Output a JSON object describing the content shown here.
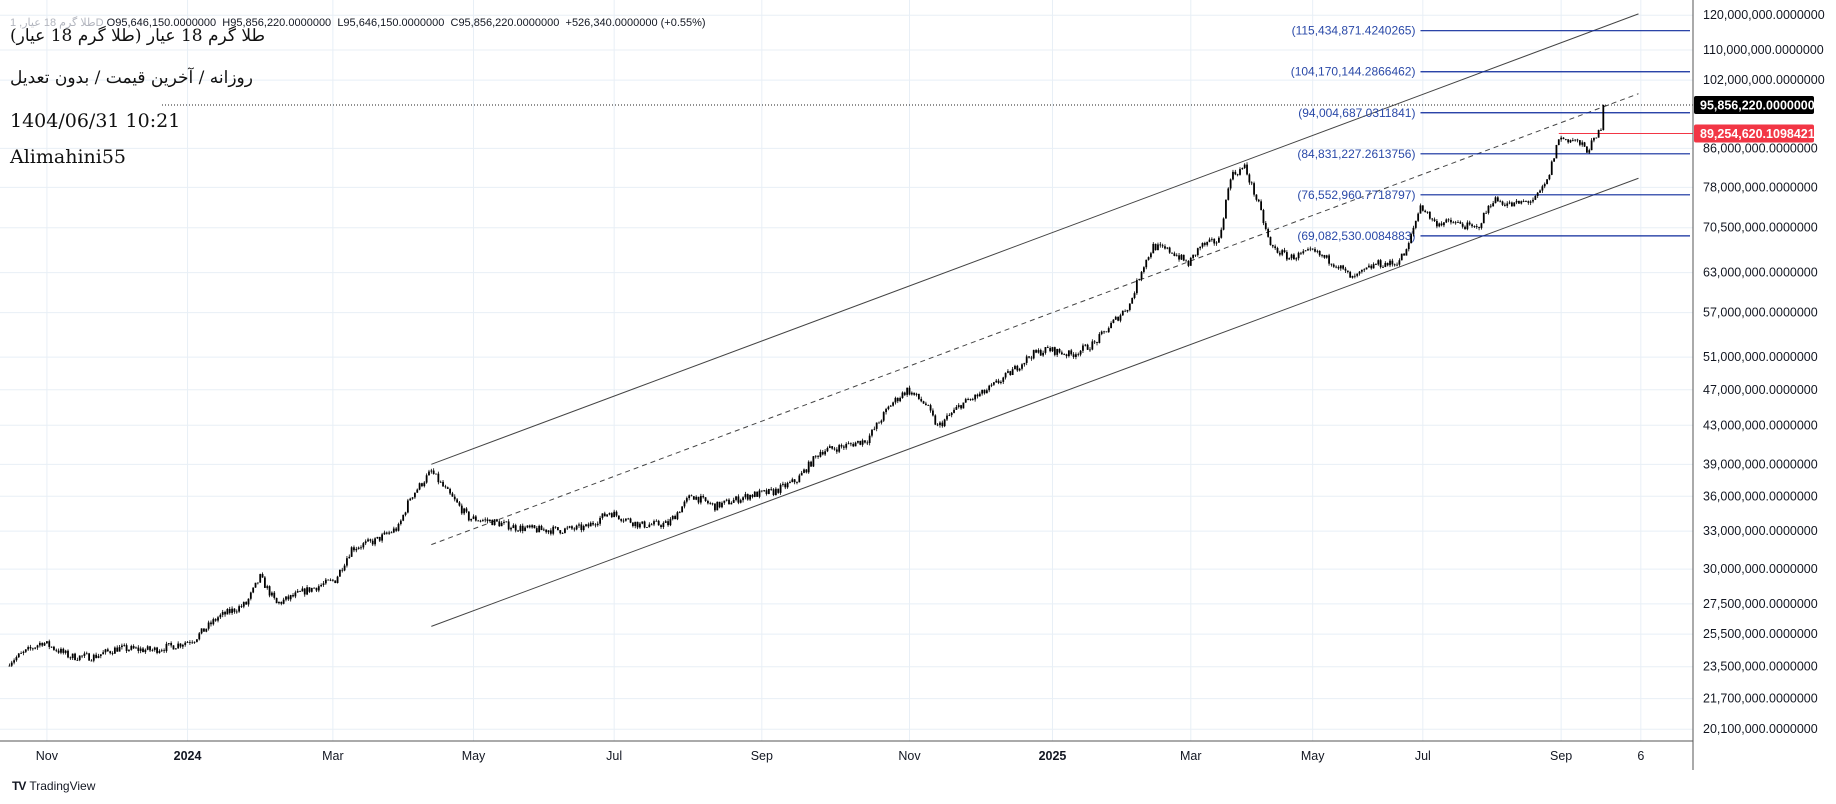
{
  "header": {
    "ohlc_line": {
      "symbol": "طلا گرم 18 عيار, 1D",
      "open": "O95,646,150.0000000",
      "high": "H95,856,220.0000000",
      "low": "L95,646,150.0000000",
      "close": "C95,856,220.0000000",
      "change": "+526,340.0000000 (+0.55%)"
    },
    "title": "(طلا گرم 18 عيار (طلا گرم 18 عيار",
    "subtitle": "روزانه / آخرين قيمت / بدون تعديل",
    "datetime": "1404/06/31 10:21",
    "author": "Alimahini55"
  },
  "footer": {
    "brand": "TradingView"
  },
  "colors": {
    "candle": "#000000",
    "fib_line": "#0d2a9c",
    "fib_text": "#2a49a8",
    "red_line": "#f23645",
    "grid": "#e8eff6",
    "channel": "#444444"
  },
  "chart_data": {
    "type": "candlestick",
    "scale": "log",
    "xlabel": "",
    "ylabel": "",
    "ylim": [
      20100000,
      120000000
    ],
    "y_ticks": [
      "120,000,000.0000000",
      "110,000,000.0000000",
      "102,000,000.0000000",
      "86,000,000.0000000",
      "78,000,000.0000000",
      "70,500,000.0000000",
      "63,000,000.0000000",
      "57,000,000.0000000",
      "51,000,000.0000000",
      "47,000,000.0000000",
      "43,000,000.0000000",
      "39,000,000.0000000",
      "36,000,000.0000000",
      "33,000,000.0000000",
      "30,000,000.0000000",
      "27,500,000.0000000",
      "25,500,000.0000000",
      "23,500,000.0000000",
      "21,700,000.0000000",
      "20,100,000.0000000"
    ],
    "y_tick_values": [
      120000000,
      110000000,
      102000000,
      86000000,
      78000000,
      70500000,
      63000000,
      57000000,
      51000000,
      47000000,
      43000000,
      39000000,
      36000000,
      33000000,
      30000000,
      27500000,
      25500000,
      23500000,
      21700000,
      20100000
    ],
    "x_ticks": [
      {
        "label": "Nov",
        "bar": 16
      },
      {
        "label": "2024",
        "bar": 76,
        "bold": true
      },
      {
        "label": "Mar",
        "bar": 138
      },
      {
        "label": "May",
        "bar": 198
      },
      {
        "label": "Jul",
        "bar": 258
      },
      {
        "label": "Sep",
        "bar": 321
      },
      {
        "label": "Nov",
        "bar": 384
      },
      {
        "label": "2025",
        "bar": 445,
        "bold": true
      },
      {
        "label": "Mar",
        "bar": 504
      },
      {
        "label": "May",
        "bar": 556
      },
      {
        "label": "Jul",
        "bar": 603
      },
      {
        "label": "Sep",
        "bar": 662
      },
      {
        "label": "6",
        "bar": 696
      }
    ],
    "close_keypoints": [
      [
        0,
        23.8
      ],
      [
        14,
        25.0
      ],
      [
        26,
        24.1
      ],
      [
        36,
        24.1
      ],
      [
        46,
        24.6
      ],
      [
        61,
        24.5
      ],
      [
        71,
        24.8
      ],
      [
        79,
        25.2
      ],
      [
        89,
        26.6
      ],
      [
        101,
        27.5
      ],
      [
        107,
        29.4
      ],
      [
        114,
        27.5
      ],
      [
        126,
        28.4
      ],
      [
        139,
        29.2
      ],
      [
        146,
        31.6
      ],
      [
        156,
        32.2
      ],
      [
        166,
        33.3
      ],
      [
        171,
        35.9
      ],
      [
        180,
        38.3
      ],
      [
        186,
        36.6
      ],
      [
        196,
        34.1
      ],
      [
        206,
        33.8
      ],
      [
        216,
        33.3
      ],
      [
        226,
        33.1
      ],
      [
        236,
        33.1
      ],
      [
        246,
        33.3
      ],
      [
        256,
        34.6
      ],
      [
        269,
        33.5
      ],
      [
        281,
        33.6
      ],
      [
        291,
        36.1
      ],
      [
        301,
        35.1
      ],
      [
        316,
        36.1
      ],
      [
        326,
        36.4
      ],
      [
        336,
        37.5
      ],
      [
        346,
        40.3
      ],
      [
        356,
        40.8
      ],
      [
        366,
        41.5
      ],
      [
        376,
        45.3
      ],
      [
        383,
        47.0
      ],
      [
        391,
        45.3
      ],
      [
        396,
        42.8
      ],
      [
        406,
        45.3
      ],
      [
        416,
        46.7
      ],
      [
        426,
        48.8
      ],
      [
        436,
        51.3
      ],
      [
        443,
        52.0
      ],
      [
        453,
        51.3
      ],
      [
        463,
        52.8
      ],
      [
        471,
        55.7
      ],
      [
        478,
        58.2
      ],
      [
        483,
        63.5
      ],
      [
        488,
        67.3
      ],
      [
        496,
        66.4
      ],
      [
        503,
        64.4
      ],
      [
        508,
        67.3
      ],
      [
        516,
        68.3
      ],
      [
        521,
        80.3
      ],
      [
        527,
        82.0
      ],
      [
        533,
        74.6
      ],
      [
        538,
        67.3
      ],
      [
        546,
        65.4
      ],
      [
        556,
        66.4
      ],
      [
        566,
        64.4
      ],
      [
        573,
        62.0
      ],
      [
        583,
        64.4
      ],
      [
        591,
        64.4
      ],
      [
        596,
        66.4
      ],
      [
        602,
        74.6
      ],
      [
        608,
        71.4
      ],
      [
        616,
        71.4
      ],
      [
        626,
        70.3
      ],
      [
        633,
        75.7
      ],
      [
        641,
        74.6
      ],
      [
        651,
        75.7
      ],
      [
        656,
        79.1
      ],
      [
        661,
        88.2
      ],
      [
        668,
        87.7
      ],
      [
        673,
        85.7
      ],
      [
        677,
        88.2
      ],
      [
        679,
        90.8
      ],
      [
        680,
        95.856
      ]
    ],
    "y_unit": "millions",
    "last_price": {
      "value": 95856220,
      "label": "95,856,220.0000000"
    },
    "red_level": {
      "value": 89254620.1098421,
      "label": "89,254,620.1098421",
      "from_bar": 661
    },
    "fib_levels": [
      {
        "value": 115434871.4240265,
        "label": "(115,434,871.4240265)"
      },
      {
        "value": 104170144.2866462,
        "label": "(104,170,144.2866462)"
      },
      {
        "value": 94004687.0311841,
        "label": "(94,004,687.0311841)"
      },
      {
        "value": 84831227.2613756,
        "label": "(84,831,227.2613756)"
      },
      {
        "value": 76552960.7718797,
        "label": "(76,552,960.7718797)"
      },
      {
        "value": 69082530.0084883,
        "label": "(69,082,530.0084883)"
      }
    ],
    "fib_from_bar": 602,
    "channel": {
      "upper": [
        [
          180,
          39000000
        ],
        [
          695,
          120400000
        ]
      ],
      "middle": [
        [
          180,
          31900000
        ],
        [
          695,
          98600000
        ]
      ],
      "lower": [
        [
          180,
          26000000
        ],
        [
          695,
          79800000
        ]
      ]
    }
  }
}
